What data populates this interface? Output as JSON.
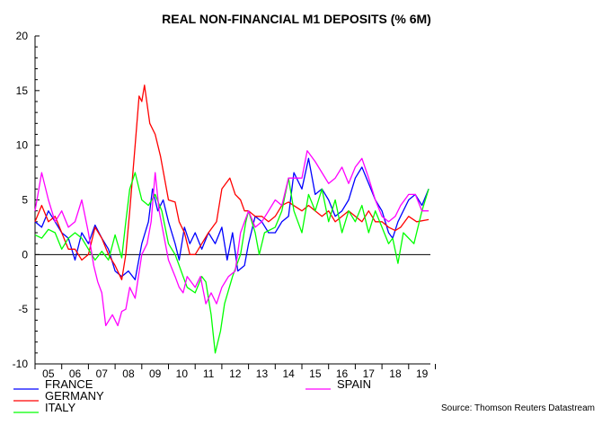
{
  "chart_data": {
    "type": "line",
    "title": "REAL NON-FINANCIAL M1 DEPOSITS (% 6M)",
    "source": "Source: Thomson Reuters Datastream",
    "xlim": [
      2005.0,
      2019.8
    ],
    "ylim": [
      -10,
      20
    ],
    "yticks": [
      20,
      15,
      10,
      5,
      0,
      -5,
      -10
    ],
    "xtick_labels": [
      "05",
      "06",
      "07",
      "08",
      "09",
      "10",
      "11",
      "12",
      "13",
      "14",
      "15",
      "16",
      "17",
      "18",
      "19"
    ],
    "grid": false,
    "zero_line": true,
    "legend_placement": "bottom",
    "series": [
      {
        "name": "FRANCE",
        "color": "#0000ff",
        "points": [
          [
            2005.0,
            3
          ],
          [
            2005.25,
            2.5
          ],
          [
            2005.5,
            4
          ],
          [
            2005.75,
            3
          ],
          [
            2006.0,
            2
          ],
          [
            2006.25,
            1.5
          ],
          [
            2006.5,
            -0.5
          ],
          [
            2006.75,
            2
          ],
          [
            2007.0,
            1
          ],
          [
            2007.25,
            2.7
          ],
          [
            2007.5,
            1.5
          ],
          [
            2007.75,
            0.5
          ],
          [
            2008.0,
            -1.5
          ],
          [
            2008.25,
            -2
          ],
          [
            2008.5,
            -1.5
          ],
          [
            2008.75,
            -2.3
          ],
          [
            2009.0,
            1
          ],
          [
            2009.25,
            3
          ],
          [
            2009.4,
            6
          ],
          [
            2009.6,
            4
          ],
          [
            2009.8,
            5
          ],
          [
            2010.0,
            3
          ],
          [
            2010.25,
            1
          ],
          [
            2010.4,
            -0.5
          ],
          [
            2010.6,
            2.5
          ],
          [
            2010.8,
            1
          ],
          [
            2011.0,
            2
          ],
          [
            2011.25,
            0.5
          ],
          [
            2011.5,
            2
          ],
          [
            2011.75,
            1
          ],
          [
            2012.0,
            2.5
          ],
          [
            2012.2,
            -0.5
          ],
          [
            2012.4,
            2
          ],
          [
            2012.6,
            -1.5
          ],
          [
            2012.85,
            -1
          ],
          [
            2013.0,
            1
          ],
          [
            2013.25,
            3.5
          ],
          [
            2013.5,
            3
          ],
          [
            2013.75,
            2
          ],
          [
            2014.0,
            2
          ],
          [
            2014.25,
            3
          ],
          [
            2014.5,
            3.5
          ],
          [
            2014.7,
            7.5
          ],
          [
            2015.0,
            6
          ],
          [
            2015.25,
            8.8
          ],
          [
            2015.5,
            5.5
          ],
          [
            2015.75,
            6
          ],
          [
            2016.0,
            5
          ],
          [
            2016.25,
            3.5
          ],
          [
            2016.5,
            4
          ],
          [
            2016.75,
            5
          ],
          [
            2017.0,
            7
          ],
          [
            2017.25,
            8
          ],
          [
            2017.5,
            6.5
          ],
          [
            2017.75,
            5
          ],
          [
            2018.0,
            4
          ],
          [
            2018.25,
            2
          ],
          [
            2018.4,
            1.5
          ],
          [
            2018.6,
            3
          ],
          [
            2019.0,
            5
          ],
          [
            2019.25,
            5.5
          ],
          [
            2019.5,
            4.5
          ],
          [
            2019.75,
            6
          ]
        ]
      },
      {
        "name": "GERMANY",
        "color": "#ff0000",
        "points": [
          [
            2005.0,
            3
          ],
          [
            2005.25,
            4.5
          ],
          [
            2005.5,
            3
          ],
          [
            2005.75,
            3.5
          ],
          [
            2006.0,
            2
          ],
          [
            2006.25,
            0.5
          ],
          [
            2006.5,
            0.5
          ],
          [
            2006.75,
            -0.5
          ],
          [
            2007.0,
            0
          ],
          [
            2007.25,
            2.5
          ],
          [
            2007.5,
            1.5
          ],
          [
            2007.75,
            0
          ],
          [
            2008.0,
            -1
          ],
          [
            2008.25,
            -2.3
          ],
          [
            2008.4,
            0
          ],
          [
            2008.55,
            4
          ],
          [
            2008.75,
            10
          ],
          [
            2008.9,
            14.5
          ],
          [
            2009.0,
            14
          ],
          [
            2009.1,
            15.5
          ],
          [
            2009.3,
            12
          ],
          [
            2009.5,
            11
          ],
          [
            2009.7,
            9
          ],
          [
            2010.0,
            5
          ],
          [
            2010.25,
            4.8
          ],
          [
            2010.4,
            3
          ],
          [
            2010.6,
            2
          ],
          [
            2010.8,
            0
          ],
          [
            2011.0,
            0
          ],
          [
            2011.25,
            1
          ],
          [
            2011.5,
            2
          ],
          [
            2011.8,
            3
          ],
          [
            2012.0,
            6
          ],
          [
            2012.3,
            7
          ],
          [
            2012.5,
            5.5
          ],
          [
            2012.7,
            5
          ],
          [
            2012.85,
            4
          ],
          [
            2013.0,
            4
          ],
          [
            2013.25,
            3.5
          ],
          [
            2013.5,
            3.5
          ],
          [
            2013.75,
            3
          ],
          [
            2014.0,
            3.5
          ],
          [
            2014.25,
            4.5
          ],
          [
            2014.5,
            4.8
          ],
          [
            2015.0,
            4
          ],
          [
            2015.25,
            4.5
          ],
          [
            2015.5,
            4
          ],
          [
            2015.75,
            3.5
          ],
          [
            2016.0,
            4
          ],
          [
            2016.25,
            3
          ],
          [
            2016.5,
            3.5
          ],
          [
            2016.75,
            4
          ],
          [
            2017.0,
            3.5
          ],
          [
            2017.25,
            3
          ],
          [
            2017.5,
            4
          ],
          [
            2017.75,
            3
          ],
          [
            2018.0,
            3
          ],
          [
            2018.25,
            2.5
          ],
          [
            2018.5,
            2.2
          ],
          [
            2018.7,
            2.5
          ],
          [
            2019.0,
            3.5
          ],
          [
            2019.3,
            3
          ],
          [
            2019.75,
            3.2
          ]
        ]
      },
      {
        "name": "ITALY",
        "color": "#00ff00",
        "points": [
          [
            2005.0,
            1.8
          ],
          [
            2005.25,
            1.5
          ],
          [
            2005.5,
            2.3
          ],
          [
            2005.75,
            2
          ],
          [
            2006.0,
            0.5
          ],
          [
            2006.25,
            1.5
          ],
          [
            2006.5,
            2
          ],
          [
            2006.75,
            1.5
          ],
          [
            2007.0,
            0.5
          ],
          [
            2007.25,
            -0.5
          ],
          [
            2007.5,
            0.3
          ],
          [
            2007.75,
            -0.5
          ],
          [
            2008.0,
            1.8
          ],
          [
            2008.25,
            -0.3
          ],
          [
            2008.4,
            3
          ],
          [
            2008.55,
            6
          ],
          [
            2008.75,
            7.5
          ],
          [
            2009.0,
            5
          ],
          [
            2009.25,
            4.5
          ],
          [
            2009.5,
            5.5
          ],
          [
            2009.75,
            4
          ],
          [
            2010.0,
            1
          ],
          [
            2010.25,
            0
          ],
          [
            2010.4,
            -1
          ],
          [
            2010.55,
            -2
          ],
          [
            2010.7,
            -3
          ],
          [
            2011.0,
            -3.5
          ],
          [
            2011.25,
            -2
          ],
          [
            2011.4,
            -2.5
          ],
          [
            2011.5,
            -4
          ],
          [
            2011.6,
            -5.5
          ],
          [
            2011.75,
            -9
          ],
          [
            2011.95,
            -7
          ],
          [
            2012.1,
            -4.5
          ],
          [
            2012.4,
            -2
          ],
          [
            2012.7,
            0
          ],
          [
            2012.9,
            3
          ],
          [
            2013.0,
            4
          ],
          [
            2013.25,
            2
          ],
          [
            2013.4,
            0
          ],
          [
            2013.6,
            2
          ],
          [
            2014.0,
            2.5
          ],
          [
            2014.25,
            4
          ],
          [
            2014.5,
            7
          ],
          [
            2014.7,
            4
          ],
          [
            2015.0,
            2
          ],
          [
            2015.25,
            5.5
          ],
          [
            2015.5,
            4
          ],
          [
            2015.75,
            6
          ],
          [
            2016.0,
            3
          ],
          [
            2016.25,
            5
          ],
          [
            2016.5,
            2
          ],
          [
            2016.75,
            4
          ],
          [
            2017.0,
            3
          ],
          [
            2017.25,
            4.5
          ],
          [
            2017.5,
            2
          ],
          [
            2017.75,
            4
          ],
          [
            2018.0,
            2.5
          ],
          [
            2018.25,
            1
          ],
          [
            2018.4,
            1.5
          ],
          [
            2018.6,
            -0.8
          ],
          [
            2018.8,
            2
          ],
          [
            2019.2,
            1
          ],
          [
            2019.5,
            4
          ],
          [
            2019.75,
            6
          ]
        ]
      },
      {
        "name": "SPAIN",
        "color": "#ff00ff",
        "points": [
          [
            2005.0,
            4
          ],
          [
            2005.25,
            7.5
          ],
          [
            2005.5,
            5
          ],
          [
            2005.75,
            3
          ],
          [
            2006.0,
            4
          ],
          [
            2006.25,
            2.5
          ],
          [
            2006.5,
            3
          ],
          [
            2006.75,
            5
          ],
          [
            2007.0,
            2
          ],
          [
            2007.2,
            -1
          ],
          [
            2007.35,
            -2.5
          ],
          [
            2007.5,
            -3.5
          ],
          [
            2007.65,
            -6.5
          ],
          [
            2007.9,
            -5.5
          ],
          [
            2008.1,
            -6.5
          ],
          [
            2008.25,
            -5.2
          ],
          [
            2008.4,
            -5
          ],
          [
            2008.55,
            -3
          ],
          [
            2008.75,
            -4
          ],
          [
            2009.0,
            0
          ],
          [
            2009.2,
            1
          ],
          [
            2009.35,
            3
          ],
          [
            2009.5,
            7.5
          ],
          [
            2009.65,
            4
          ],
          [
            2010.0,
            -0.5
          ],
          [
            2010.25,
            -2
          ],
          [
            2010.4,
            -3
          ],
          [
            2010.55,
            -3.5
          ],
          [
            2010.7,
            -2
          ],
          [
            2011.0,
            -3
          ],
          [
            2011.2,
            -2
          ],
          [
            2011.4,
            -4.5
          ],
          [
            2011.6,
            -3.5
          ],
          [
            2011.8,
            -4.5
          ],
          [
            2012.0,
            -3
          ],
          [
            2012.25,
            -2
          ],
          [
            2012.5,
            -1.5
          ],
          [
            2012.7,
            2
          ],
          [
            2013.0,
            4
          ],
          [
            2013.25,
            2.5
          ],
          [
            2013.5,
            3
          ],
          [
            2013.75,
            4
          ],
          [
            2014.0,
            5
          ],
          [
            2014.25,
            4.5
          ],
          [
            2014.5,
            7
          ],
          [
            2014.75,
            7
          ],
          [
            2015.0,
            7
          ],
          [
            2015.2,
            9.5
          ],
          [
            2015.5,
            8.5
          ],
          [
            2015.75,
            7.5
          ],
          [
            2016.0,
            6.5
          ],
          [
            2016.25,
            7
          ],
          [
            2016.5,
            8
          ],
          [
            2016.75,
            6.5
          ],
          [
            2017.0,
            8
          ],
          [
            2017.25,
            8.8
          ],
          [
            2017.5,
            7
          ],
          [
            2017.75,
            5
          ],
          [
            2018.0,
            3.5
          ],
          [
            2018.25,
            3
          ],
          [
            2018.5,
            3.5
          ],
          [
            2018.7,
            4.5
          ],
          [
            2019.0,
            5.5
          ],
          [
            2019.25,
            5.5
          ],
          [
            2019.5,
            4
          ],
          [
            2019.75,
            4
          ]
        ]
      }
    ]
  }
}
